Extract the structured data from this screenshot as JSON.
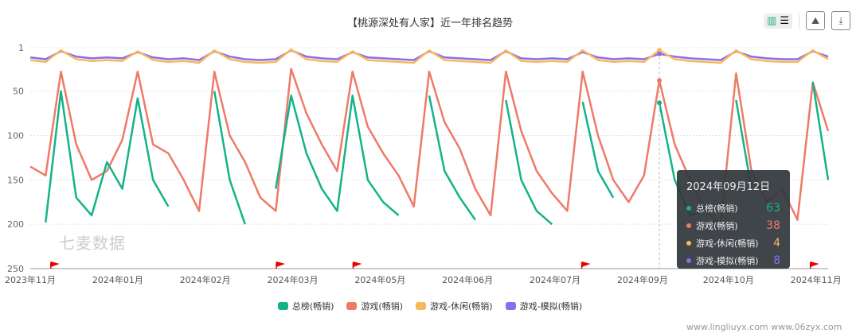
{
  "title": "【桃源深处有人家】近一年排名趋势",
  "toolbar": {
    "chart_view": "bar-chart-icon",
    "list_view": "list-icon",
    "save_image": "image-icon",
    "download": "download-icon"
  },
  "watermark": "七麦数据",
  "site_watermark": "www.lingliuyx.com  www.06zyx.com",
  "chart_data": {
    "type": "line",
    "title": "【桃源深处有人家】近一年排名趋势",
    "y_inverted": true,
    "ylim": [
      1,
      250
    ],
    "yticks": [
      1,
      50,
      100,
      150,
      200,
      250
    ],
    "grid": true,
    "legend_position": "bottom",
    "xticks": [
      {
        "label": "2023年11月",
        "index": 0
      },
      {
        "label": "2024年01月",
        "index": 5.7
      },
      {
        "label": "2024年02月",
        "index": 11.4
      },
      {
        "label": "2024年03月",
        "index": 17.1
      },
      {
        "label": "2024年05月",
        "index": 22.8
      },
      {
        "label": "2024年06月",
        "index": 28.5
      },
      {
        "label": "2024年07月",
        "index": 34.2
      },
      {
        "label": "2024年09月",
        "index": 39.9
      },
      {
        "label": "2024年10月",
        "index": 45.5
      },
      {
        "label": "2024年11月",
        "index": 51.2
      }
    ],
    "flags": [
      1.6,
      16.3,
      21.3,
      36.2,
      51.1
    ],
    "series": [
      {
        "name": "总榜(畅销)",
        "color": "#13b38a",
        "values": [
          null,
          198,
          50,
          170,
          190,
          130,
          160,
          58,
          150,
          180,
          null,
          null,
          50,
          150,
          200,
          null,
          160,
          55,
          120,
          160,
          185,
          55,
          150,
          175,
          190,
          null,
          55,
          140,
          170,
          195,
          null,
          60,
          150,
          185,
          200,
          null,
          62,
          140,
          170,
          null,
          null,
          63,
          150,
          190,
          185,
          null,
          60,
          160,
          null,
          null,
          null,
          40,
          150
        ]
      },
      {
        "name": "游戏(畅销)",
        "color": "#ee7a68",
        "values": [
          135,
          145,
          28,
          110,
          150,
          140,
          105,
          28,
          110,
          120,
          150,
          185,
          28,
          100,
          130,
          170,
          185,
          25,
          75,
          110,
          140,
          28,
          90,
          120,
          145,
          180,
          28,
          85,
          115,
          160,
          190,
          28,
          95,
          140,
          165,
          185,
          28,
          100,
          150,
          175,
          145,
          38,
          110,
          150,
          185,
          200,
          30,
          140,
          175,
          160,
          195,
          40,
          95
        ]
      },
      {
        "name": "游戏-休闲(畅销)",
        "color": "#f8b85a",
        "values": [
          15,
          17,
          4,
          14,
          16,
          15,
          16,
          5,
          15,
          17,
          16,
          18,
          4,
          14,
          17,
          18,
          17,
          3,
          14,
          16,
          17,
          5,
          15,
          16,
          17,
          18,
          4,
          15,
          16,
          17,
          18,
          4,
          16,
          17,
          16,
          17,
          4,
          15,
          17,
          16,
          17,
          4,
          14,
          16,
          17,
          18,
          4,
          14,
          16,
          17,
          17,
          4,
          14
        ]
      },
      {
        "name": "游戏-模拟(畅销)",
        "color": "#8a6cf0",
        "values": [
          12,
          14,
          5,
          11,
          13,
          12,
          13,
          6,
          12,
          14,
          13,
          15,
          5,
          11,
          14,
          15,
          14,
          4,
          11,
          13,
          14,
          6,
          12,
          13,
          14,
          15,
          5,
          12,
          13,
          14,
          15,
          5,
          13,
          14,
          13,
          14,
          6,
          12,
          14,
          13,
          14,
          8,
          11,
          13,
          14,
          15,
          5,
          11,
          13,
          14,
          14,
          5,
          11
        ]
      }
    ]
  },
  "tooltip": {
    "date": "2024年09月12日",
    "index": 41,
    "rows": [
      {
        "name": "总榜(畅销)",
        "value": "63",
        "color": "#13b38a"
      },
      {
        "name": "游戏(畅销)",
        "value": "38",
        "color": "#ee7a68"
      },
      {
        "name": "游戏-休闲(畅销)",
        "value": "4",
        "color": "#f8b85a"
      },
      {
        "name": "游戏-模拟(畅销)",
        "value": "8",
        "color": "#8a6cf0"
      }
    ]
  }
}
